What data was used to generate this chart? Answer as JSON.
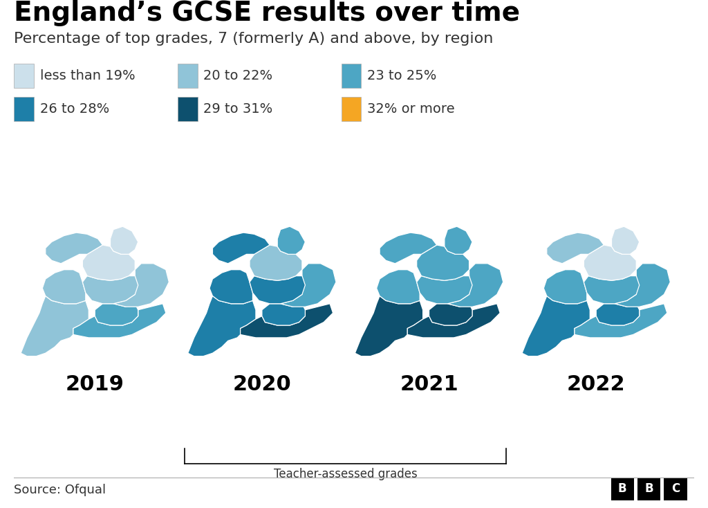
{
  "title": "England’s GCSE results over time",
  "subtitle": "Percentage of top grades, 7 (formerly A) and above, by region",
  "source": "Source: Ofqual",
  "years": [
    "2019",
    "2020",
    "2021",
    "2022"
  ],
  "legend": [
    {
      "label": "less than 19%",
      "color": "#cce0eb"
    },
    {
      "label": "20 to 22%",
      "color": "#90c4d8"
    },
    {
      "label": "23 to 25%",
      "color": "#4da6c4"
    },
    {
      "label": "26 to 28%",
      "color": "#1e7fa8"
    },
    {
      "label": "29 to 31%",
      "color": "#0d506e"
    },
    {
      "label": "32% or more",
      "color": "#f5a623"
    }
  ],
  "background_color": "#ffffff",
  "title_fontsize": 28,
  "subtitle_fontsize": 16,
  "legend_fontsize": 14,
  "year_fontsize": 22,
  "source_fontsize": 13,
  "regions_data": {
    "NorthEast": {
      "2019": 0,
      "2020": 2,
      "2021": 2,
      "2022": 0
    },
    "NorthWest": {
      "2019": 1,
      "2020": 3,
      "2021": 2,
      "2022": 1
    },
    "YorkshireHumber": {
      "2019": 0,
      "2020": 1,
      "2021": 2,
      "2022": 0
    },
    "EastMidlands": {
      "2019": 1,
      "2020": 3,
      "2021": 2,
      "2022": 2
    },
    "WestMidlands": {
      "2019": 1,
      "2020": 3,
      "2021": 2,
      "2022": 2
    },
    "EastEngland": {
      "2019": 1,
      "2020": 2,
      "2021": 2,
      "2022": 2
    },
    "London": {
      "2019": 2,
      "2020": 3,
      "2021": 4,
      "2022": 3
    },
    "SouthEast": {
      "2019": 2,
      "2020": 4,
      "2021": 4,
      "2022": 2
    },
    "SouthWest": {
      "2019": 1,
      "2020": 3,
      "2021": 4,
      "2022": 3
    }
  }
}
